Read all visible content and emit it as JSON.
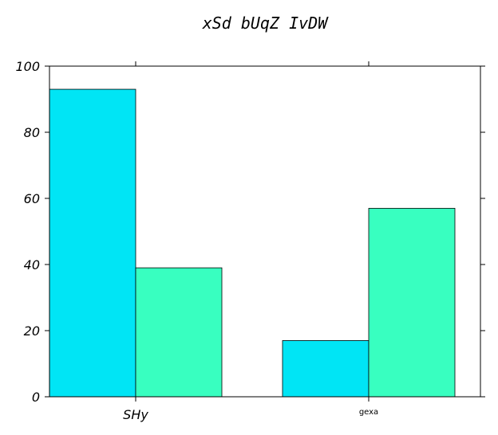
{
  "chart_data": {
    "type": "bar",
    "title": "xSd bUqZ IvDW",
    "xlabel": "",
    "ylabel": "",
    "categories": [
      "SHy",
      "gexa"
    ],
    "series": [
      {
        "values": [
          93,
          17
        ],
        "color": "#00e5f5"
      },
      {
        "values": [
          39,
          57
        ],
        "color": "#38ffc0"
      }
    ],
    "ylim": [
      0,
      100
    ],
    "yticks": [
      0,
      20,
      40,
      60,
      80,
      100
    ],
    "ytick_labels": [
      "0",
      "20",
      "40",
      "60",
      "80",
      "100"
    ],
    "grid": false,
    "legend": "none"
  }
}
